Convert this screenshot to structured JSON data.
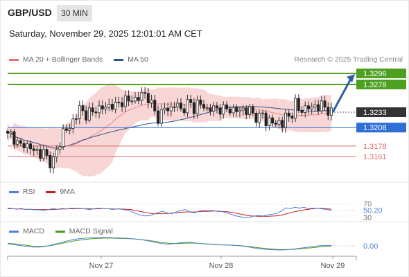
{
  "header": {
    "symbol": "GBP/USD",
    "interval": "30 MIN",
    "datetime": "Saturday, November 29, 2025 12:01:01 AM CET",
    "credit": "Research © 2025 Trading Central"
  },
  "legends": {
    "main": [
      {
        "label": "MA 20 + Bollinger Bands",
        "color": "#e8716f"
      },
      {
        "label": "MA 50",
        "color": "#2c4f8c"
      }
    ],
    "rsi": [
      {
        "label": "RSI",
        "color": "#4f7fd6"
      },
      {
        "label": "9MA",
        "color": "#cc1e1e"
      }
    ],
    "macd": [
      {
        "label": "MACD",
        "color": "#4f7fd6"
      },
      {
        "label": "MACD Signal",
        "color": "#4c9a18"
      }
    ]
  },
  "chart_data": {
    "type": "candlestick",
    "x_ticks": [
      "Nov 27",
      "Nov 28",
      "Nov 29"
    ],
    "price_levels": [
      {
        "value": 1.3296,
        "label": "1.3296",
        "kind": "target",
        "color": "#4ea021"
      },
      {
        "value": 1.3278,
        "label": "1.3278",
        "kind": "target",
        "color": "#4ea021"
      },
      {
        "value": 1.3233,
        "label": "1.3233",
        "kind": "last",
        "color": "#333333"
      },
      {
        "value": 1.3208,
        "label": "1.3208",
        "kind": "pivot",
        "color": "#2f6fd6"
      },
      {
        "value": 1.3178,
        "label": "1.3178",
        "kind": "support",
        "color": "#e06b6b"
      },
      {
        "value": 1.3161,
        "label": "1.3161",
        "kind": "support",
        "color": "#e06b6b"
      }
    ],
    "close_path": [
      1.3195,
      1.3198,
      1.3186,
      1.3176,
      1.3183,
      1.3178,
      1.317,
      1.3173,
      1.3164,
      1.3168,
      1.3155,
      1.315,
      1.3166,
      1.3185,
      1.321,
      1.3199,
      1.3218,
      1.323,
      1.324,
      1.3226,
      1.3236,
      1.323,
      1.3239,
      1.3242,
      1.3237,
      1.3244,
      1.3246,
      1.3241,
      1.325,
      1.3255,
      1.3248,
      1.3258,
      1.3252,
      1.3261,
      1.3262,
      1.3255,
      1.3238,
      1.3222,
      1.3232,
      1.324,
      1.3236,
      1.3246,
      1.3243,
      1.3236,
      1.3244,
      1.3249,
      1.3238,
      1.325,
      1.3243,
      1.3238,
      1.324,
      1.3237,
      1.324,
      1.3238,
      1.3236,
      1.3239,
      1.3236,
      1.3233,
      1.324,
      1.3235,
      1.3235,
      1.3228,
      1.3222,
      1.3231,
      1.3214,
      1.3224,
      1.3208,
      1.322,
      1.3214,
      1.3228,
      1.3224,
      1.325,
      1.3234,
      1.3238,
      1.3243,
      1.3236,
      1.3246,
      1.3241,
      1.3244,
      1.3237,
      1.3233
    ],
    "forecast": {
      "from": 1.3233,
      "to": 1.3296
    },
    "rsi": {
      "levels": [
        70,
        50,
        30
      ],
      "last_label": "50.20",
      "rsi": [
        57,
        56,
        53,
        56,
        52,
        53,
        51,
        51,
        49,
        52,
        55,
        53,
        56,
        54,
        57,
        56,
        56,
        54,
        52,
        55,
        57,
        55,
        55,
        52,
        55,
        53,
        50,
        47,
        40,
        34,
        31,
        31,
        36,
        42,
        46,
        41,
        38,
        44,
        49,
        52,
        44,
        41,
        47,
        50,
        48,
        49,
        46,
        45,
        42,
        36,
        31,
        28,
        24,
        25,
        30,
        32,
        30,
        34,
        36,
        39,
        47,
        58,
        55,
        60,
        57,
        60,
        55,
        57,
        56,
        54,
        52,
        50
      ],
      "ma9": [
        55,
        55,
        54,
        54,
        53,
        53,
        52,
        52,
        52,
        52,
        52,
        53,
        54,
        54,
        55,
        55,
        55,
        55,
        55,
        54,
        55,
        55,
        55,
        54,
        54,
        54,
        53,
        52,
        49,
        46,
        43,
        40,
        38,
        38,
        38,
        39,
        40,
        41,
        43,
        44,
        44,
        44,
        45,
        46,
        46,
        47,
        47,
        46,
        45,
        43,
        40,
        37,
        34,
        31,
        30,
        29,
        29,
        29,
        30,
        31,
        33,
        37,
        41,
        45,
        48,
        51,
        53,
        55,
        56,
        56,
        55,
        53
      ]
    },
    "macd": {
      "zero_label": "0.00",
      "macd": [
        0.5,
        0.3,
        0.05,
        -0.15,
        -0.3,
        -0.3,
        -0.1,
        0.3,
        0.7,
        1.1,
        1.45,
        1.7,
        1.85,
        1.95,
        2.0,
        2.0,
        1.95,
        1.9,
        1.85,
        1.75,
        1.6,
        1.4,
        1.1,
        0.8,
        0.5,
        0.4,
        0.6,
        0.8,
        0.9,
        0.7,
        0.5,
        0.4,
        0.3,
        0.2,
        0.2,
        0.1,
        0.0,
        -0.2,
        -0.5,
        -0.7,
        -0.85,
        -0.95,
        -1.0,
        -0.95,
        -0.8,
        -0.6,
        -0.4,
        -0.2,
        0.0,
        0.1,
        0.1
      ],
      "signal": [
        0.6,
        0.5,
        0.3,
        0.1,
        -0.1,
        -0.15,
        -0.05,
        0.15,
        0.45,
        0.8,
        1.1,
        1.35,
        1.55,
        1.7,
        1.8,
        1.85,
        1.85,
        1.8,
        1.75,
        1.7,
        1.6,
        1.45,
        1.25,
        1.0,
        0.8,
        0.6,
        0.55,
        0.6,
        0.65,
        0.65,
        0.55,
        0.45,
        0.35,
        0.25,
        0.2,
        0.15,
        0.05,
        -0.1,
        -0.3,
        -0.5,
        -0.65,
        -0.8,
        -0.9,
        -0.9,
        -0.85,
        -0.75,
        -0.6,
        -0.45,
        -0.3,
        -0.15,
        -0.05
      ]
    }
  }
}
